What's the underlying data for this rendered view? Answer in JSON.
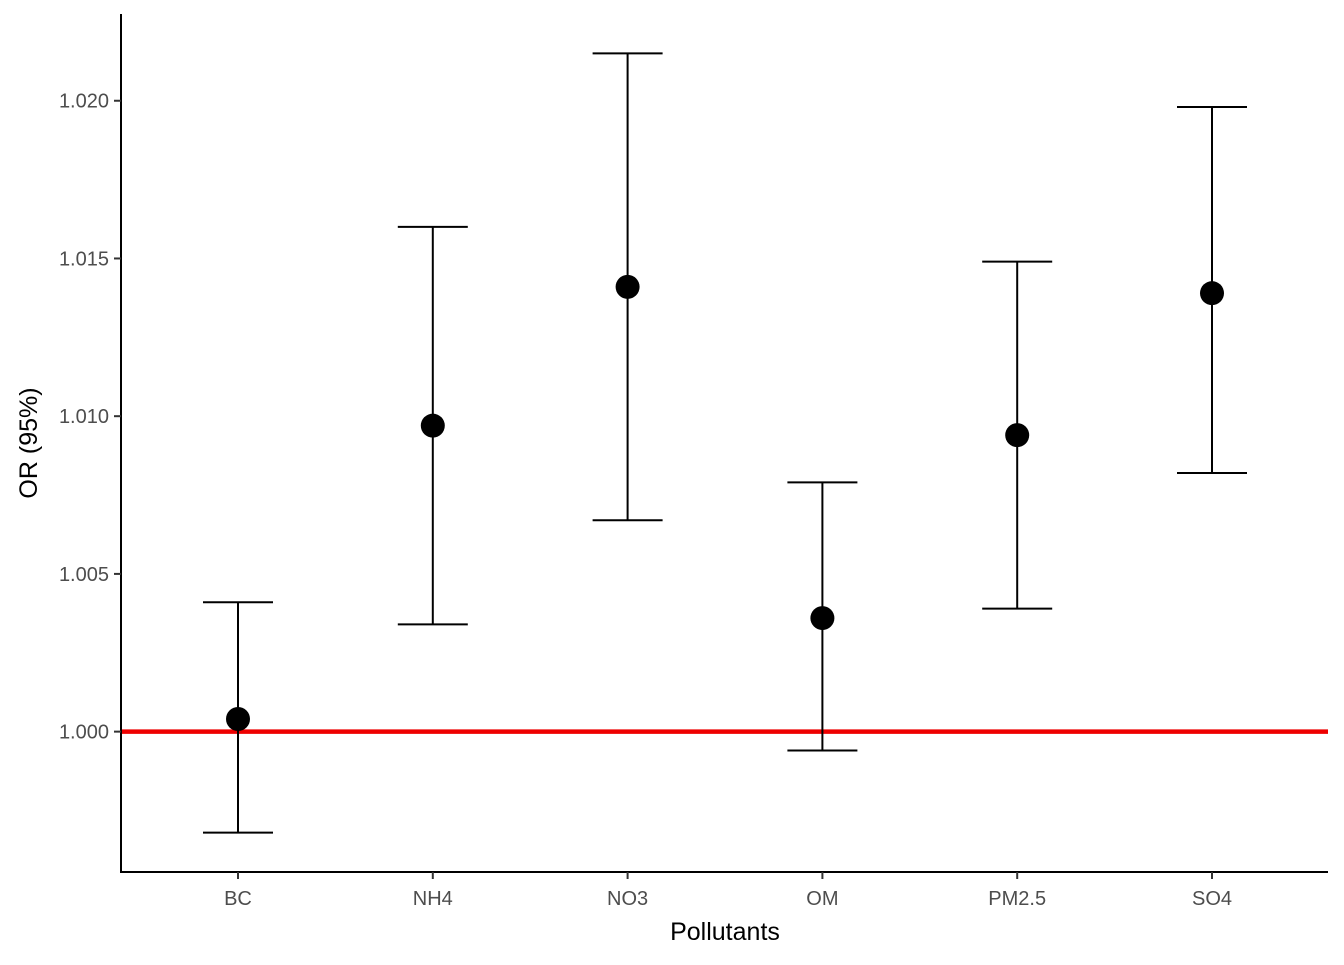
{
  "chart_data": {
    "type": "scatter",
    "xlabel": "Pollutants",
    "ylabel": "OR (95%)",
    "categories": [
      "BC",
      "NH4",
      "NO3",
      "OM",
      "PM2.5",
      "SO4"
    ],
    "series": [
      {
        "points": [
          {
            "x": "BC",
            "y": 1.0004,
            "lower": 0.9968,
            "upper": 1.0041
          },
          {
            "x": "NH4",
            "y": 1.0097,
            "lower": 1.0034,
            "upper": 1.016
          },
          {
            "x": "NO3",
            "y": 1.0141,
            "lower": 1.0067,
            "upper": 1.0215
          },
          {
            "x": "OM",
            "y": 1.0036,
            "lower": 0.9994,
            "upper": 1.0079
          },
          {
            "x": "PM2.5",
            "y": 1.0094,
            "lower": 1.0039,
            "upper": 1.0149
          },
          {
            "x": "SO4",
            "y": 1.0139,
            "lower": 1.0082,
            "upper": 1.0198
          }
        ]
      }
    ],
    "reference_line": {
      "y": 1.0,
      "color": "#ee0000"
    },
    "yticks": [
      "1.000",
      "1.005",
      "1.010",
      "1.015",
      "1.020"
    ],
    "ylim": [
      0.99555,
      1.02275
    ],
    "grid": false,
    "colors": {
      "points": "#000000",
      "errorbars": "#000000",
      "axis": "#000000"
    }
  }
}
